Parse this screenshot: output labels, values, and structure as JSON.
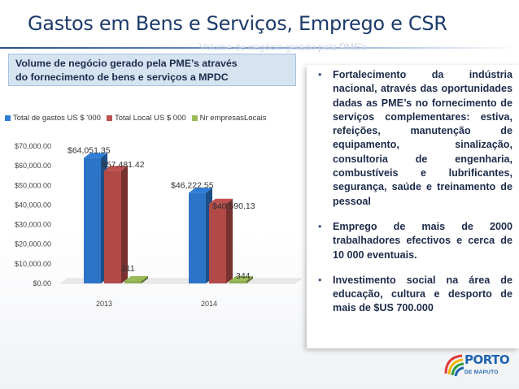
{
  "slide": {
    "title": "Gastos em Bens e Serviços, Emprego e CSR",
    "ghost_text": "Volume de negócio gerado pela PME's",
    "subtitle_line1": "Volume de negócio gerado pela PME’s através",
    "subtitle_line2": "do fornecimento de bens e serviços a MPDC"
  },
  "bullets": [
    "Fortalecimento da indústria nacional, através das oportunidades dadas as PME’s no fornecimento de serviços complementares: estiva, refeições, manutenção de equipamento, sinalização, consultoria de engenharia, combustíveis e lubrificantes, segurança, saúde e treinamento de pessoal",
    "Emprego de mais de 2000 trabalhadores efectivos e cerca de 10 000 eventuais.",
    "Investimento social na área de educação, cultura e desporto de mais de $US 700.000"
  ],
  "logo": {
    "name": "PORTO",
    "sub": "DE MAPUTO"
  },
  "colors": {
    "title": "#1c3a6b",
    "series_blue": "#2f7ed8",
    "series_red": "#c0504d",
    "series_green": "#9bbb59",
    "subtitle_bg": "#d6e4f2"
  },
  "chart_data": {
    "type": "bar",
    "categories": [
      "2013",
      "2014"
    ],
    "series": [
      {
        "name": "Total de gastos US $ '000",
        "values": [
          64051.35,
          46222.55
        ],
        "labels": [
          "$64,051.35",
          "$46,222.55"
        ],
        "color": "#2f7ed8"
      },
      {
        "name": "Total Local US $ 000",
        "values": [
          57481.42,
          40690.13
        ],
        "labels": [
          "$57,481.42",
          "$40,690.13"
        ],
        "color": "#c0504d"
      },
      {
        "name": "Nr empresasLocais",
        "values": [
          311,
          344
        ],
        "labels": [
          "311",
          "344"
        ],
        "color": "#9bbb59"
      }
    ],
    "yticks": [
      "$0.00",
      "$10,000.00",
      "$20,000.00",
      "$30,000.00",
      "$40,000.00",
      "$50,000.00",
      "$60,000.00",
      "$70,000.00"
    ],
    "ylim": [
      0,
      70000
    ],
    "legend": "top",
    "grid": false
  }
}
